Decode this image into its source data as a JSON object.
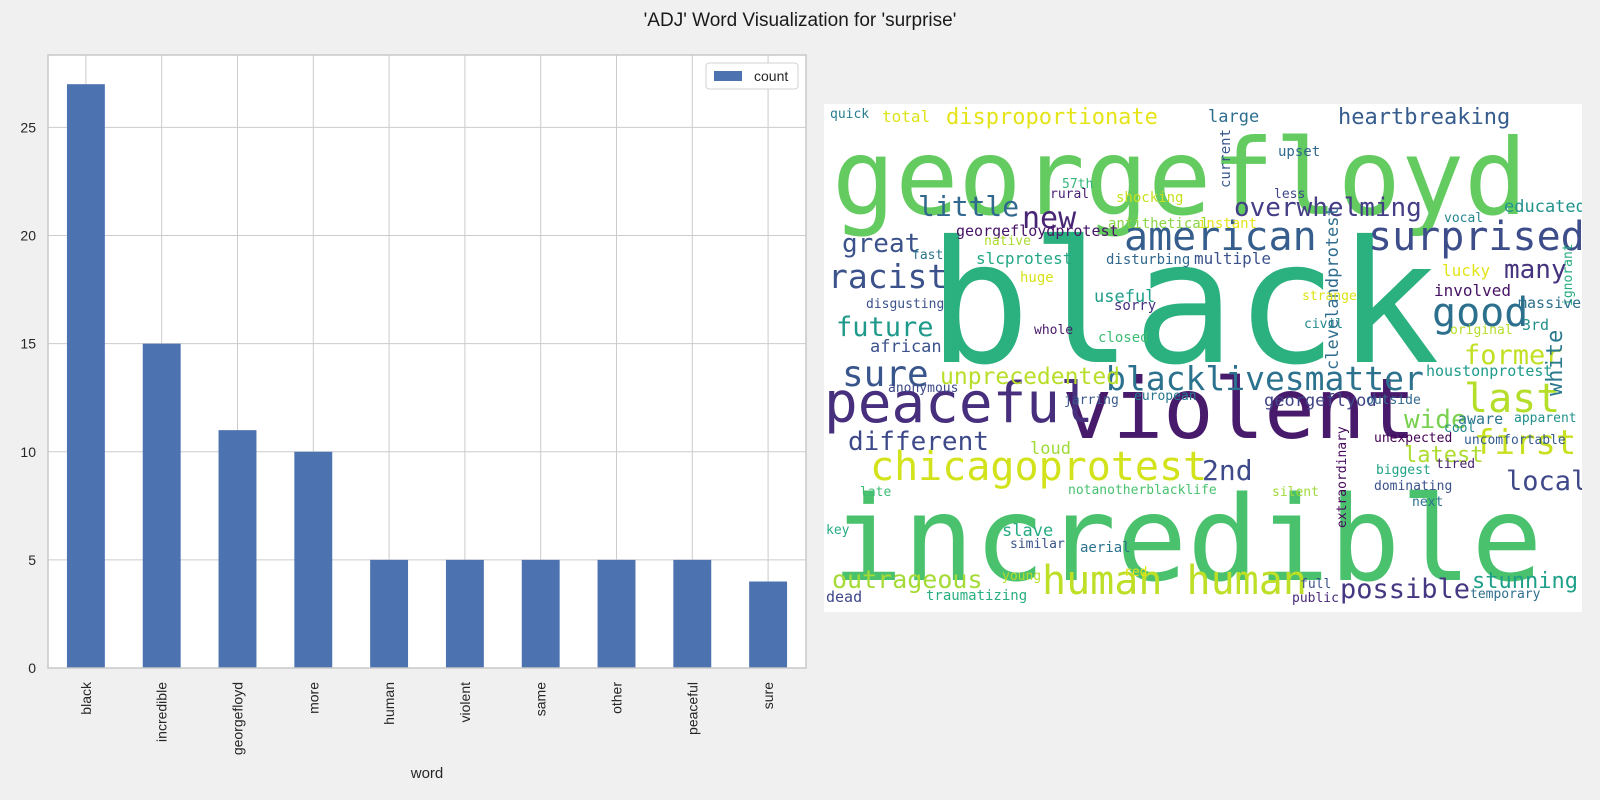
{
  "figure": {
    "title": "'ADJ' Word Visualization for 'surprise'"
  },
  "chart_data": [
    {
      "type": "bar",
      "xlabel": "word",
      "ylabel": "",
      "categories": [
        "black",
        "incredible",
        "georgefloyd",
        "more",
        "human",
        "violent",
        "same",
        "other",
        "peaceful",
        "sure"
      ],
      "series": [
        {
          "name": "count",
          "values": [
            27,
            15,
            11,
            10,
            5,
            5,
            5,
            5,
            5,
            4
          ]
        }
      ],
      "ylim": [
        0,
        28.35
      ],
      "yticks": [
        0,
        5,
        10,
        15,
        20,
        25
      ],
      "grid": true,
      "legend": "top-right",
      "color": "#4c72b0"
    },
    {
      "type": "wordcloud",
      "palette": "viridis",
      "words": [
        {
          "text": "black",
          "color": "#2bb07f"
        },
        {
          "text": "incredible",
          "color": "#4ac16d"
        },
        {
          "text": "georgefloyd",
          "color": "#63cb5f"
        },
        {
          "text": "violent",
          "color": "#481a6c"
        },
        {
          "text": "peaceful",
          "color": "#472f7d"
        },
        {
          "text": "human human",
          "color": "#bddf26"
        },
        {
          "text": "chicagoprotest",
          "color": "#d2e21b"
        },
        {
          "text": "american",
          "color": "#355e8d"
        },
        {
          "text": "surprised",
          "color": "#3d4d8a"
        },
        {
          "text": "blacklivesmatter",
          "color": "#2c728e"
        },
        {
          "text": "racist",
          "color": "#3b528b"
        },
        {
          "text": "sure",
          "color": "#39568c"
        },
        {
          "text": "last",
          "color": "#b5de2b"
        },
        {
          "text": "good",
          "color": "#2d708e"
        },
        {
          "text": "first",
          "color": "#c8e020"
        },
        {
          "text": "overwhelming",
          "color": "#433e85"
        },
        {
          "text": "different",
          "color": "#3e4989"
        },
        {
          "text": "great",
          "color": "#3b528b"
        },
        {
          "text": "future",
          "color": "#1f9a8a"
        },
        {
          "text": "possible",
          "color": "#453781"
        },
        {
          "text": "outrageous",
          "color": "#a5db36"
        },
        {
          "text": "little",
          "color": "#31688e"
        },
        {
          "text": "new",
          "color": "#482475"
        },
        {
          "text": "many",
          "color": "#46337e"
        },
        {
          "text": "disproportionate",
          "color": "#e5e419"
        },
        {
          "text": "heartbreaking",
          "color": "#365c8d"
        },
        {
          "text": "unprecedented",
          "color": "#b8de29"
        },
        {
          "text": "2nd",
          "color": "#3e4a89"
        },
        {
          "text": "local",
          "color": "#3f4889"
        },
        {
          "text": "former",
          "color": "#c2df23"
        },
        {
          "text": "stunning",
          "color": "#1fa088"
        },
        {
          "text": "wide",
          "color": "#7ad151"
        },
        {
          "text": "latest",
          "color": "#addc30"
        },
        {
          "text": "white",
          "color": "#2a788e"
        },
        {
          "text": "slave",
          "color": "#25ab82"
        },
        {
          "text": "educated",
          "color": "#20938c"
        },
        {
          "text": "slcprotest",
          "color": "#22a785"
        },
        {
          "text": "georgeflyod",
          "color": "#414487"
        },
        {
          "text": "houstonprotest",
          "color": "#1e9b8a"
        },
        {
          "text": "clevelandprotest",
          "color": "#2f6c8e"
        },
        {
          "text": "useful",
          "color": "#1f9e89"
        },
        {
          "text": "african",
          "color": "#3b528b"
        },
        {
          "text": "involved",
          "color": "#471365"
        },
        {
          "text": "lucky",
          "color": "#e2e418"
        },
        {
          "text": "loud",
          "color": "#a0da39"
        },
        {
          "text": "multiple",
          "color": "#3b528b"
        },
        {
          "text": "aware",
          "color": "#2a768e"
        },
        {
          "text": "large",
          "color": "#2e6e8e"
        },
        {
          "text": "total",
          "color": "#dde318"
        },
        {
          "text": "upset",
          "color": "#31688e"
        },
        {
          "text": "quick",
          "color": "#287d8e"
        },
        {
          "text": "current",
          "color": "#38588c"
        },
        {
          "text": "shocking",
          "color": "#c8e020"
        },
        {
          "text": "57th",
          "color": "#35b779"
        },
        {
          "text": "rural",
          "color": "#482173"
        },
        {
          "text": "less",
          "color": "#3f4788"
        },
        {
          "text": "vocal",
          "color": "#25858e"
        },
        {
          "text": "antithetical",
          "color": "#8bd646"
        },
        {
          "text": "instant",
          "color": "#e5e419"
        },
        {
          "text": "georgefloydprotest",
          "color": "#481467"
        },
        {
          "text": "native",
          "color": "#addc30"
        },
        {
          "text": "fast",
          "color": "#2c728e"
        },
        {
          "text": "disturbing",
          "color": "#31688e"
        },
        {
          "text": "ignorant",
          "color": "#27ad81"
        },
        {
          "text": "huge",
          "color": "#d8e219"
        },
        {
          "text": "sorry",
          "color": "#46307e"
        },
        {
          "text": "strange",
          "color": "#dde318"
        },
        {
          "text": "cool",
          "color": "#23898e"
        },
        {
          "text": "massive",
          "color": "#2d708e"
        },
        {
          "text": "disgusting",
          "color": "#3b528b"
        },
        {
          "text": "civil",
          "color": "#23898e"
        },
        {
          "text": "original",
          "color": "#b5de2b"
        },
        {
          "text": "3rd",
          "color": "#21918c"
        },
        {
          "text": "whole",
          "color": "#48186a"
        },
        {
          "text": "closed",
          "color": "#3dbc74"
        },
        {
          "text": "anonymous",
          "color": "#3e4989"
        },
        {
          "text": "jarring",
          "color": "#38598c"
        },
        {
          "text": "european",
          "color": "#2a788e"
        },
        {
          "text": "outside",
          "color": "#31688e"
        },
        {
          "text": "apparent",
          "color": "#21918c"
        },
        {
          "text": "unexpected",
          "color": "#440154"
        },
        {
          "text": "extraordinary",
          "color": "#46085c"
        },
        {
          "text": "uncomfortable",
          "color": "#365c8d"
        },
        {
          "text": "tired",
          "color": "#481f70"
        },
        {
          "text": "biggest",
          "color": "#20a386"
        },
        {
          "text": "late",
          "color": "#3dbc74"
        },
        {
          "text": "notanotherblacklife",
          "color": "#48c16e"
        },
        {
          "text": "silent",
          "color": "#9fda3a"
        },
        {
          "text": "dominating",
          "color": "#3b528b"
        },
        {
          "text": "next",
          "color": "#2c728e"
        },
        {
          "text": "key",
          "color": "#25ab82"
        },
        {
          "text": "similar",
          "color": "#3a538b"
        },
        {
          "text": "aerial",
          "color": "#2c728e"
        },
        {
          "text": "young",
          "color": "#b5de2b"
        },
        {
          "text": "red",
          "color": "#e2e418"
        },
        {
          "text": "full",
          "color": "#3b528b"
        },
        {
          "text": "public",
          "color": "#482878"
        },
        {
          "text": "temporary",
          "color": "#2e6e8e"
        },
        {
          "text": "dead",
          "color": "#3f4788"
        },
        {
          "text": "traumatizing",
          "color": "#29af7f"
        }
      ]
    }
  ]
}
